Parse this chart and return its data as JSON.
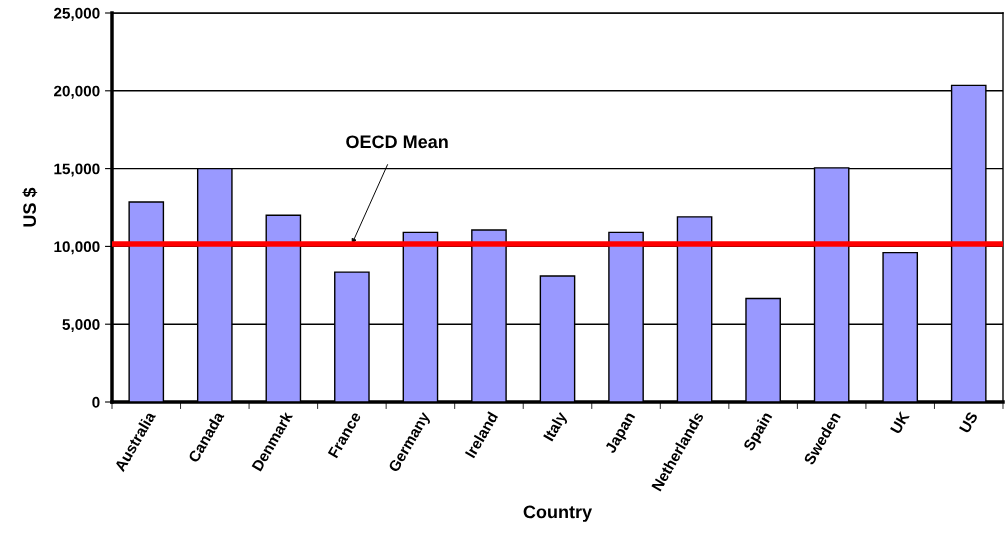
{
  "chart_data": {
    "type": "bar",
    "xlabel": "Country",
    "ylabel": "US $",
    "categories": [
      "Australia",
      "Canada",
      "Denmark",
      "France",
      "Germany",
      "Ireland",
      "Italy",
      "Japan",
      "Netherlands",
      "Spain",
      "Sweden",
      "UK",
      "US"
    ],
    "values": [
      12850,
      15000,
      12000,
      8350,
      10900,
      11050,
      8100,
      10900,
      11900,
      6650,
      15050,
      9600,
      20350
    ],
    "color": "#9999ff",
    "ylim": [
      0,
      25000
    ],
    "yticks": [
      {
        "value": 0,
        "label": "0"
      },
      {
        "value": 5000,
        "label": "5,000"
      },
      {
        "value": 10000,
        "label": "10,000"
      },
      {
        "value": 15000,
        "label": "15,000"
      },
      {
        "value": 20000,
        "label": "20,000"
      },
      {
        "value": 25000,
        "label": "25,000"
      }
    ],
    "grid": "y",
    "legend": false,
    "ref_lines": [
      {
        "axis": "y",
        "value": 10150,
        "color": "#ff0000"
      }
    ],
    "annotations": [
      {
        "text": "OECD Mean",
        "x": "France",
        "y": 10150
      }
    ]
  }
}
